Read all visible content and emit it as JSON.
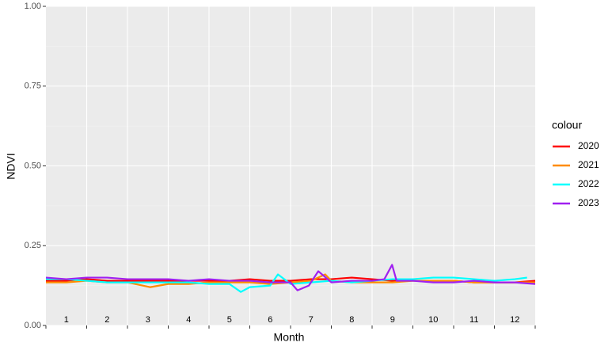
{
  "chart_data": {
    "type": "line",
    "x_label": "Month",
    "y_label": "NDVI",
    "legend_title": "colour",
    "categories": [
      "1",
      "2",
      "3",
      "4",
      "5",
      "6",
      "7",
      "8",
      "9",
      "10",
      "11",
      "12"
    ],
    "xlim": [
      0,
      12
    ],
    "ylim": [
      0,
      1
    ],
    "yticks": [
      {
        "value": 0,
        "label": "0.00"
      },
      {
        "value": 0.25,
        "label": "0.25"
      },
      {
        "value": 0.5,
        "label": "0.50"
      },
      {
        "value": 0.75,
        "label": "0.75"
      },
      {
        "value": 1,
        "label": "1.00"
      }
    ],
    "grid": true,
    "legend": "right",
    "series": [
      {
        "name": "2020",
        "color": "#ff0000",
        "x": [
          0,
          0.5,
          1,
          1.5,
          2,
          2.5,
          3,
          3.5,
          4,
          4.5,
          5,
          5.5,
          6,
          6.5,
          7,
          7.5,
          8,
          8.5,
          9,
          9.5,
          10,
          10.5,
          11,
          11.5,
          12
        ],
        "values": [
          0.14,
          0.14,
          0.145,
          0.14,
          0.14,
          0.14,
          0.14,
          0.14,
          0.14,
          0.14,
          0.145,
          0.14,
          0.14,
          0.145,
          0.145,
          0.15,
          0.145,
          0.14,
          0.14,
          0.14,
          0.14,
          0.135,
          0.135,
          0.135,
          0.14
        ]
      },
      {
        "name": "2021",
        "color": "#ff8c00",
        "x": [
          0,
          0.5,
          1,
          1.5,
          2,
          2.56,
          3,
          3.5,
          4,
          4.5,
          5,
          5.5,
          6,
          6.5,
          6.85,
          7,
          7.5,
          8,
          8.5,
          9,
          9.5,
          10,
          10.5,
          11,
          11.5,
          12
        ],
        "values": [
          0.135,
          0.135,
          0.14,
          0.135,
          0.135,
          0.12,
          0.13,
          0.13,
          0.135,
          0.135,
          0.135,
          0.13,
          0.135,
          0.14,
          0.16,
          0.14,
          0.135,
          0.135,
          0.135,
          0.14,
          0.14,
          0.14,
          0.135,
          0.135,
          0.135,
          0.135
        ]
      },
      {
        "name": "2022",
        "color": "#00ffff",
        "x": [
          0,
          0.5,
          1,
          1.5,
          2,
          2.5,
          3,
          3.5,
          4,
          4.5,
          4.78,
          5,
          5.5,
          5.69,
          6,
          6.5,
          7,
          7.5,
          8,
          8.5,
          9,
          9.5,
          10,
          10.5,
          11,
          11.5,
          11.8
        ],
        "values": [
          0.145,
          0.145,
          0.14,
          0.135,
          0.135,
          0.135,
          0.135,
          0.135,
          0.13,
          0.13,
          0.105,
          0.12,
          0.125,
          0.16,
          0.13,
          0.135,
          0.14,
          0.135,
          0.14,
          0.145,
          0.145,
          0.15,
          0.15,
          0.145,
          0.14,
          0.145,
          0.15
        ]
      },
      {
        "name": "2023",
        "color": "#a020f0",
        "x": [
          0,
          0.5,
          1,
          1.5,
          2,
          2.5,
          3,
          3.5,
          4,
          4.5,
          5,
          5.5,
          6,
          6.17,
          6.45,
          6.68,
          7,
          7.5,
          8,
          8.3,
          8.49,
          8.6,
          9,
          9.5,
          10,
          10.5,
          11,
          11.5,
          12
        ],
        "values": [
          0.15,
          0.145,
          0.15,
          0.15,
          0.145,
          0.145,
          0.145,
          0.14,
          0.145,
          0.14,
          0.14,
          0.135,
          0.135,
          0.11,
          0.125,
          0.17,
          0.135,
          0.14,
          0.14,
          0.145,
          0.19,
          0.14,
          0.14,
          0.135,
          0.135,
          0.14,
          0.135,
          0.135,
          0.13
        ]
      }
    ]
  }
}
